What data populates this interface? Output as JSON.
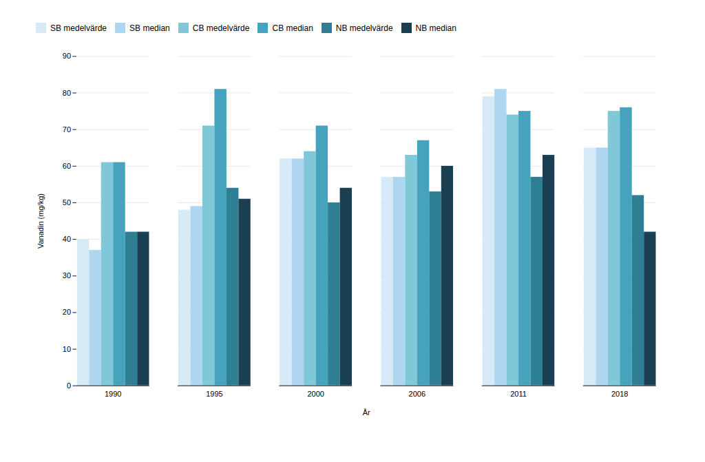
{
  "chart_data": {
    "type": "bar",
    "categories": [
      "1990",
      "1995",
      "2000",
      "2006",
      "2011",
      "2018"
    ],
    "series": [
      {
        "name": "SB medelvärde",
        "color": "#D6EAF8",
        "values": [
          40,
          48,
          62,
          57,
          79,
          65
        ]
      },
      {
        "name": "SB median",
        "color": "#AED6F1",
        "values": [
          37,
          49,
          62,
          57,
          81,
          65
        ]
      },
      {
        "name": "CB medelvärde",
        "color": "#7EC8D8",
        "values": [
          61,
          71,
          64,
          63,
          74,
          75
        ]
      },
      {
        "name": "CB median",
        "color": "#45A3BE",
        "values": [
          61,
          81,
          71,
          67,
          75,
          76
        ]
      },
      {
        "name": "NB medelvärde",
        "color": "#2E7F93",
        "values": [
          42,
          54,
          50,
          53,
          57,
          52
        ]
      },
      {
        "name": "NB median",
        "color": "#1A3E52",
        "values": [
          42,
          51,
          54,
          60,
          63,
          42
        ]
      }
    ],
    "xlabel": "År",
    "ylabel": "Vanadin (mg/kg)",
    "ylim": [
      0,
      90
    ],
    "yticks": [
      0,
      10,
      20,
      30,
      40,
      50,
      60,
      70,
      80,
      90
    ],
    "grid": true,
    "legend": "top"
  }
}
